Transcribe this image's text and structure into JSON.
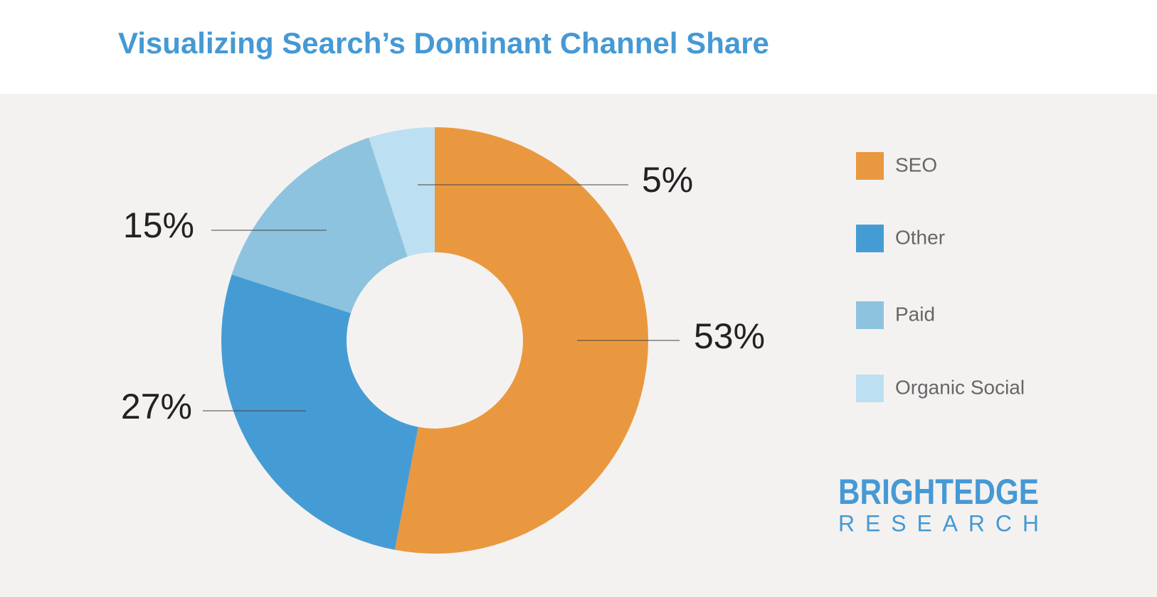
{
  "chart_data": {
    "type": "donut",
    "title": "Visualizing Search’s Dominant Channel Share",
    "categories": [
      "SEO",
      "Other",
      "Paid",
      "Organic Social"
    ],
    "values": [
      53,
      27,
      15,
      5
    ],
    "value_labels": [
      "53%",
      "27%",
      "15%",
      "5%"
    ],
    "colors": [
      "#EA983F",
      "#459CD4",
      "#8DC3DE",
      "#BDDFF2"
    ],
    "legend": "right"
  },
  "branding": {
    "name": "BRIGHTEDGE",
    "subtitle": "RESEARCH"
  }
}
